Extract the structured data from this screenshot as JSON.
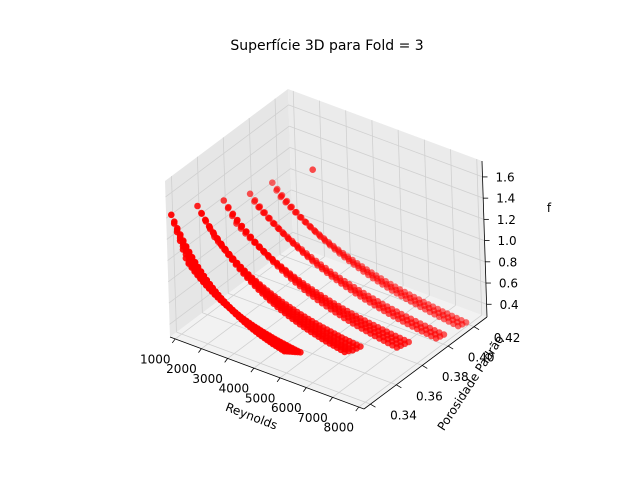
{
  "chart_data": {
    "type": "scatter",
    "projection": "3d",
    "title": "Superfície 3D para Fold = 3",
    "xlabel": "Reynolds",
    "ylabel": "Porosidade Padrão",
    "zlabel": "f",
    "x_ticks": [
      "1000",
      "2000",
      "3000",
      "4000",
      "5000",
      "6000",
      "7000",
      "8000"
    ],
    "y_ticks": [
      "0.34",
      "0.36",
      "0.38",
      "0.40",
      "0.42"
    ],
    "z_ticks": [
      "0.4",
      "0.6",
      "0.8",
      "1.0",
      "1.2",
      "1.4",
      "1.6"
    ],
    "xlim": [
      800,
      8200
    ],
    "ylim": [
      0.335,
      0.43
    ],
    "zlim": [
      0.28,
      1.75
    ],
    "grid": true,
    "marker_color": "#ff0000",
    "series": [
      {
        "curves": [
          {
            "y": 0.335,
            "z_start": 1.45,
            "z_end": 0.55,
            "x_start": 1000,
            "x_end": 5200
          },
          {
            "y": 0.337,
            "z_start": 1.35,
            "z_end": 0.53,
            "x_start": 1000,
            "x_end": 5200
          },
          {
            "y": 0.339,
            "z_start": 1.25,
            "z_end": 0.51,
            "x_start": 1000,
            "x_end": 5200
          },
          {
            "y": 0.341,
            "z_start": 1.15,
            "z_end": 0.49,
            "x_start": 1000,
            "x_end": 5200
          },
          {
            "y": 0.343,
            "z_start": 1.05,
            "z_end": 0.47,
            "x_start": 1000,
            "x_end": 5200
          },
          {
            "y": 0.345,
            "z_start": 0.95,
            "z_end": 0.45,
            "x_start": 1000,
            "x_end": 5200
          },
          {
            "y": 0.347,
            "z_start": 0.88,
            "z_end": 0.43,
            "x_start": 1000,
            "x_end": 5200
          },
          {
            "y": 0.355,
            "z_start": 1.35,
            "z_end": 0.48,
            "x_start": 1000,
            "x_end": 6500
          },
          {
            "y": 0.358,
            "z_start": 1.25,
            "z_end": 0.46,
            "x_start": 1000,
            "x_end": 6500
          },
          {
            "y": 0.361,
            "z_start": 1.15,
            "z_end": 0.44,
            "x_start": 1000,
            "x_end": 6500
          },
          {
            "y": 0.364,
            "z_start": 1.05,
            "z_end": 0.43,
            "x_start": 1000,
            "x_end": 6500
          },
          {
            "y": 0.367,
            "z_start": 0.95,
            "z_end": 0.42,
            "x_start": 1000,
            "x_end": 6500
          },
          {
            "y": 0.375,
            "z_start": 1.22,
            "z_end": 0.43,
            "x_start": 1000,
            "x_end": 7500
          },
          {
            "y": 0.378,
            "z_start": 1.12,
            "z_end": 0.42,
            "x_start": 1000,
            "x_end": 7500
          },
          {
            "y": 0.381,
            "z_start": 1.02,
            "z_end": 0.41,
            "x_start": 1000,
            "x_end": 7500
          },
          {
            "y": 0.384,
            "z_start": 0.92,
            "z_end": 0.4,
            "x_start": 1000,
            "x_end": 7500
          },
          {
            "y": 0.395,
            "z_start": 1.1,
            "z_end": 0.38,
            "x_start": 1000,
            "x_end": 8000
          },
          {
            "y": 0.398,
            "z_start": 1.0,
            "z_end": 0.37,
            "x_start": 1000,
            "x_end": 8000
          },
          {
            "y": 0.401,
            "z_start": 0.92,
            "z_end": 0.36,
            "x_start": 1000,
            "x_end": 8000
          },
          {
            "y": 0.412,
            "z_start": 1.05,
            "z_end": 0.34,
            "x_start": 1000,
            "x_end": 8000
          },
          {
            "y": 0.415,
            "z_start": 0.95,
            "z_end": 0.33,
            "x_start": 1000,
            "x_end": 8000
          },
          {
            "y": 0.418,
            "z_start": 0.86,
            "z_end": 0.32,
            "x_start": 1000,
            "x_end": 8000
          }
        ],
        "points_per_curve": 40,
        "decay_rate": 2.2,
        "outliers": [
          {
            "x": 3700,
            "y": 0.39,
            "z": 1.62
          }
        ]
      }
    ]
  }
}
